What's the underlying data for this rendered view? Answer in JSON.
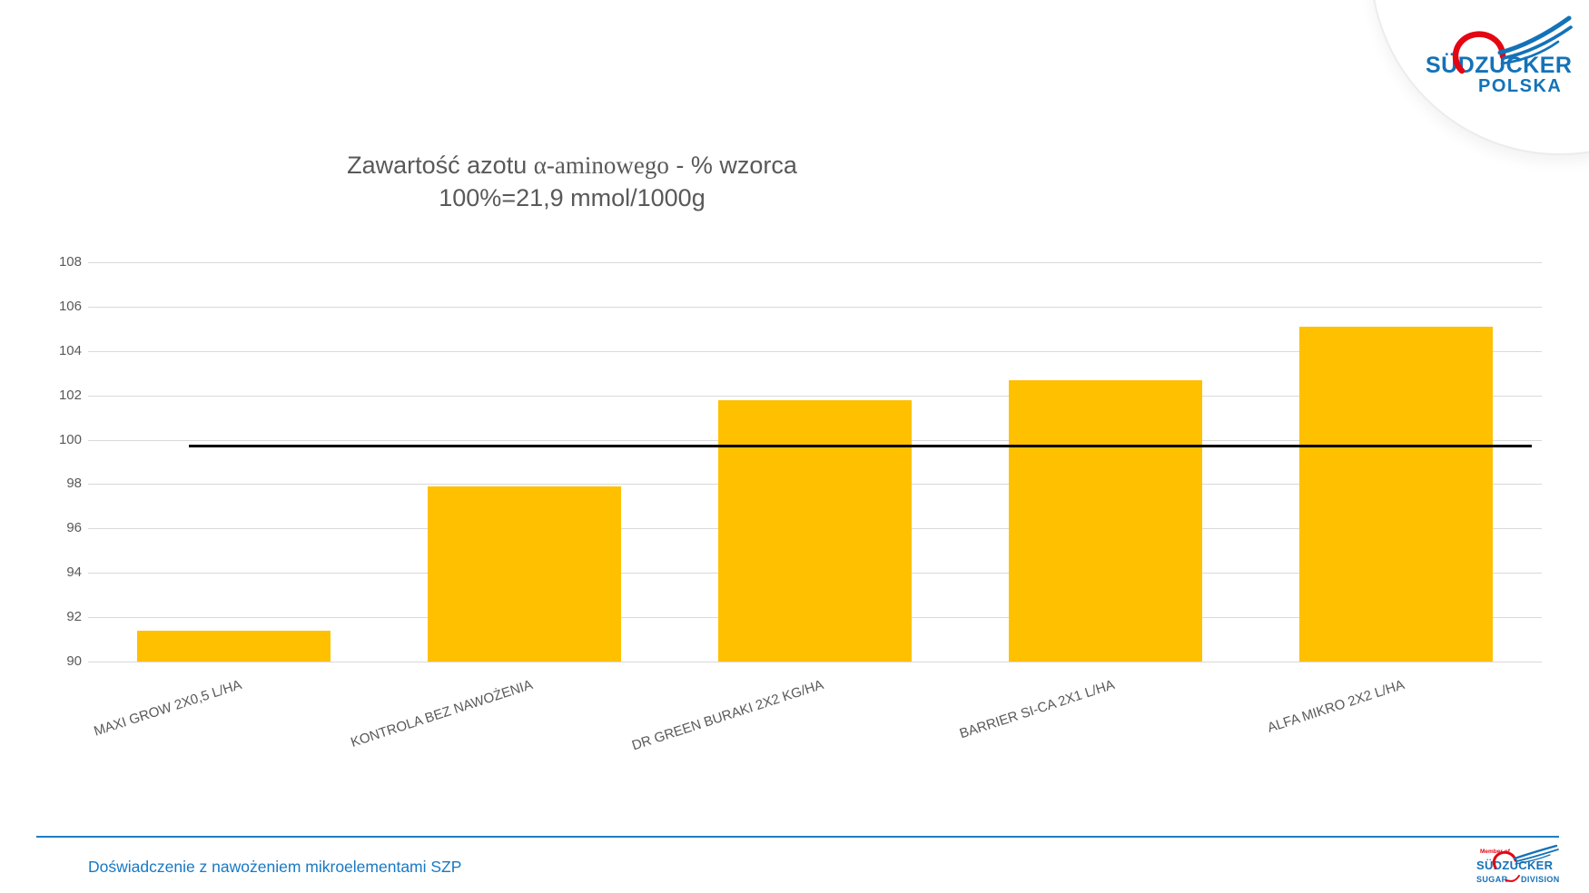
{
  "slide": {
    "footer": {
      "caption": "Doświadczenie z nawożeniem mikroelementami SZP"
    },
    "logo_top": {
      "brand": "SÜDZUCKER",
      "region": "POLSKA",
      "blue": "#1472B8",
      "red": "#E30613"
    },
    "logo_bottom": {
      "member_of": "Member of",
      "brand": "SÜDZUCKER",
      "division_left": "SUGAR",
      "division_right": "DIVISION"
    }
  },
  "chart_data": {
    "type": "bar",
    "title": "Zawartość azotu α-aminowego - % wzorca",
    "subtitle": "100%=21,9 mmol/1000g",
    "title_parts": {
      "line1_prefix": "Zawartość azotu ",
      "line1_alpha": "α-aminowego",
      "line1_suffix": " - % wzorca",
      "line2": "100%=21,9 mmol/1000g"
    },
    "categories": [
      "MAXI GROW 2X0,5 L/HA",
      "KONTROLA BEZ NAWOŻENIA",
      "DR GREEN BURAKI 2X2 KG/HA",
      "BARRIER SI-CA 2X1 L/HA",
      "ALFA MIKRO 2X2 L/HA"
    ],
    "values": [
      91.4,
      97.9,
      101.8,
      102.7,
      105.1
    ],
    "reference_line_value": 99.7,
    "ylim": [
      90,
      108
    ],
    "ytick_step": 2,
    "yticks": [
      90,
      92,
      94,
      96,
      98,
      100,
      102,
      104,
      106,
      108
    ],
    "grid": true,
    "legend": "none",
    "bar_color": "#FFC000",
    "reference_line_color": "#000000",
    "grid_color": "#D9D9D9",
    "axis_text_color": "#595959"
  }
}
